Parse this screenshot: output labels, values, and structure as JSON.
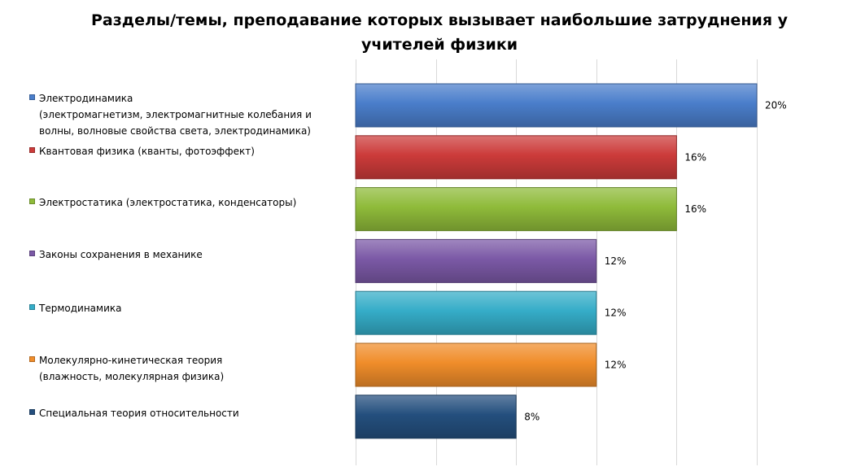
{
  "chart_data": {
    "type": "bar",
    "orientation": "horizontal",
    "title": "Разделы/темы, преподавание которых вызывает наибольшие затруднения у учителей физики",
    "xlabel": "",
    "ylabel": "",
    "xlim": [
      0,
      20
    ],
    "gridlines": true,
    "legend_position": "left",
    "data_labels_format": "percent",
    "categories": [
      "Электродинамика (электромагнетизм, электромагнитные колебания и волны, волновые свойства света, электродинамика)",
      "Квантовая физика (кванты, фотоэффект)",
      "Электростатика (электростатика, конденсаторы)",
      "Законы сохранения в механике",
      "Термодинамика",
      "Молекулярно-кинетическая теория (влажность, молекулярная физика)",
      "Специальная теория относительности"
    ],
    "values": [
      20,
      16,
      16,
      12,
      12,
      12,
      8
    ],
    "data_labels": [
      "20%",
      "16%",
      "16%",
      "12%",
      "12%",
      "12%",
      "8%"
    ],
    "colors": [
      "#4a7ecb",
      "#cc3b3a",
      "#8fbb3a",
      "#7b59a6",
      "#35adc8",
      "#f08d2a",
      "#244f7e"
    ],
    "legend": [
      "Электродинамика\n(электромагнетизм, электромагнитные колебания и\nволны, волновые свойства света, электродинамика)",
      "Квантовая физика (кванты, фотоэффект)",
      "Электростатика (электростатика, конденсаторы)",
      "Законы сохранения в механике",
      "Термодинамика",
      "Молекулярно-кинетическая теория\n(влажность, молекулярная физика)",
      "Специальная теория относительности"
    ]
  }
}
